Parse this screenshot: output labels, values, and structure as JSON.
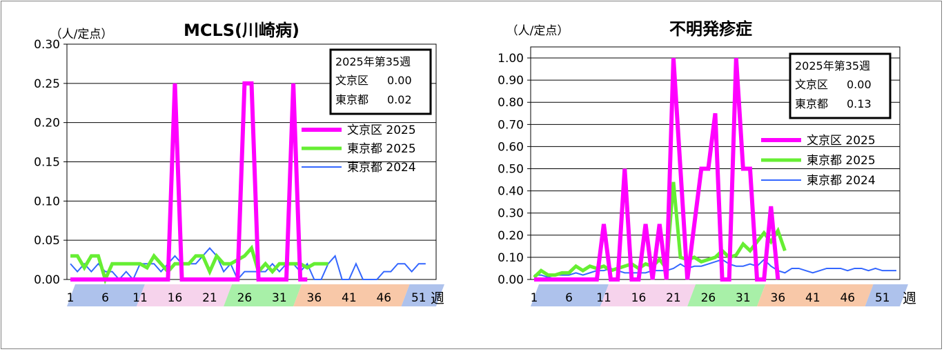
{
  "chart_data": [
    {
      "type": "line",
      "title": "MCLS(川崎病)",
      "ylabel": "（人/定点）",
      "xlabel": "週",
      "ylim": [
        0,
        0.3
      ],
      "yticks": [
        "0.00",
        "0.05",
        "0.10",
        "0.15",
        "0.20",
        "0.25",
        "0.30"
      ],
      "ytick_values": [
        0,
        0.05,
        0.1,
        0.15,
        0.2,
        0.25,
        0.3
      ],
      "xticks": [
        "1",
        "6",
        "11",
        "16",
        "21",
        "26",
        "31",
        "36",
        "41",
        "46",
        "51"
      ],
      "info_box": {
        "header": "2025年第35週",
        "row1_label": "文京区",
        "row1_value": "0.00",
        "row2_label": "東京都",
        "row2_value": "0.02"
      },
      "series": [
        {
          "name": "文京区 2025",
          "color": "#ff00ff",
          "values": [
            0,
            0,
            0,
            0,
            0,
            0,
            0,
            0,
            0,
            0,
            0,
            0,
            0,
            0,
            0,
            0.25,
            0,
            0,
            0,
            0,
            0,
            0,
            0,
            0,
            0,
            0.25,
            0.25,
            0,
            0,
            0,
            0,
            0,
            0.25,
            0,
            0
          ]
        },
        {
          "name": "東京都 2025",
          "color": "#66ee33",
          "values": [
            0.03,
            0.03,
            0.015,
            0.03,
            0.03,
            0,
            0.02,
            0.02,
            0.02,
            0.02,
            0.02,
            0.015,
            0.03,
            0.02,
            0.01,
            0.02,
            0.02,
            0.02,
            0.03,
            0.03,
            0.01,
            0.03,
            0.02,
            0.02,
            0.025,
            0.03,
            0.04,
            0.01,
            0.02,
            0.01,
            0.02,
            0.02,
            0.02,
            0.02,
            0.015,
            0.02,
            0.02,
            0.02
          ]
        },
        {
          "name": "東京都 2024",
          "color": "#3366ff",
          "values": [
            0.02,
            0.01,
            0.02,
            0.01,
            0.02,
            0.01,
            0.01,
            0.0,
            0.01,
            0.0,
            0.02,
            0.02,
            0.02,
            0.01,
            0.02,
            0.03,
            0.02,
            0.02,
            0.02,
            0.03,
            0.04,
            0.03,
            0.01,
            0.02,
            0.0,
            0.01,
            0.01,
            0.01,
            0.01,
            0.02,
            0.01,
            0.02,
            0.02,
            0.01,
            0.02,
            0.0,
            0.0,
            0.02,
            0.03,
            0.0,
            0.0,
            0.02,
            0.0,
            0.0,
            0.0,
            0.01,
            0.01,
            0.02,
            0.02,
            0.01,
            0.02,
            0.02
          ]
        }
      ]
    },
    {
      "type": "line",
      "title": "不明発疹症",
      "ylabel": "（人/定点）",
      "xlabel": "週",
      "ylim": [
        0,
        1.05
      ],
      "yticks": [
        "0.00",
        "0.10",
        "0.20",
        "0.30",
        "0.40",
        "0.50",
        "0.60",
        "0.70",
        "0.80",
        "0.90",
        "1.00"
      ],
      "ytick_values": [
        0,
        0.1,
        0.2,
        0.3,
        0.4,
        0.5,
        0.6,
        0.7,
        0.8,
        0.9,
        1.0
      ],
      "xticks": [
        "1",
        "6",
        "11",
        "16",
        "21",
        "26",
        "31",
        "36",
        "41",
        "46",
        "51"
      ],
      "info_box": {
        "header": "2025年第35週",
        "row1_label": "文京区",
        "row1_value": "0.00",
        "row2_label": "東京都",
        "row2_value": "0.13"
      },
      "series": [
        {
          "name": "文京区 2025",
          "color": "#ff00ff",
          "values": [
            0,
            0,
            0,
            0,
            0,
            0,
            0,
            0,
            0,
            0,
            0.25,
            0,
            0,
            0.5,
            0,
            0,
            0.25,
            0,
            0.25,
            0,
            1.0,
            0.5,
            0,
            0.25,
            0.5,
            0.5,
            0.75,
            0,
            0,
            1.0,
            0.5,
            0.5,
            0,
            0,
            0.33,
            0
          ]
        },
        {
          "name": "東京都 2025",
          "color": "#66ee33",
          "values": [
            0.01,
            0.04,
            0.02,
            0.02,
            0.03,
            0.03,
            0.06,
            0.04,
            0.06,
            0.05,
            0.06,
            0.04,
            0.05,
            0.06,
            0.07,
            0.05,
            0.07,
            0.06,
            0.09,
            0.05,
            0.44,
            0.1,
            0.09,
            0.1,
            0.08,
            0.09,
            0.1,
            0.13,
            0.1,
            0.11,
            0.16,
            0.13,
            0.17,
            0.21,
            0.17,
            0.22,
            0.13
          ]
        },
        {
          "name": "東京都 2024",
          "color": "#3366ff",
          "values": [
            0.02,
            0.02,
            0.01,
            0.02,
            0.02,
            0.02,
            0.03,
            0.02,
            0.03,
            0.04,
            0.04,
            0.05,
            0.04,
            0.03,
            0.03,
            0.03,
            0.03,
            0.04,
            0.04,
            0.04,
            0.05,
            0.07,
            0.05,
            0.06,
            0.06,
            0.07,
            0.08,
            0.09,
            0.07,
            0.06,
            0.06,
            0.07,
            0.06,
            0.09,
            0.06,
            0.04,
            0.03,
            0.05,
            0.05,
            0.04,
            0.03,
            0.04,
            0.05,
            0.05,
            0.05,
            0.04,
            0.05,
            0.05,
            0.04,
            0.05,
            0.04,
            0.04,
            0.04
          ]
        }
      ]
    }
  ]
}
